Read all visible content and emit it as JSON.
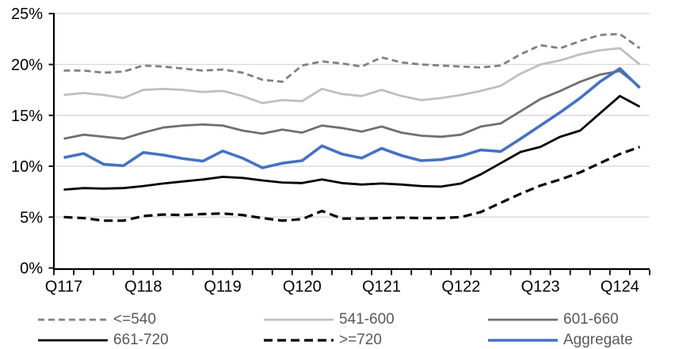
{
  "page": {
    "background": "#FFFFFF"
  },
  "chart_data": {
    "type": "line",
    "title": "",
    "xlabel": "",
    "ylabel": "",
    "x_tick_labels": [
      "Q117",
      "Q118",
      "Q119",
      "Q120",
      "Q121",
      "Q122",
      "Q123",
      "Q124"
    ],
    "x_label_point_interval": 4,
    "points_per_series": 30,
    "ylim": [
      0,
      25
    ],
    "y_tick_step": 5,
    "y_tick_labels": [
      "0%",
      "5%",
      "10%",
      "15%",
      "20%",
      "25%"
    ],
    "grid": "horizontal",
    "legend_position": "bottom",
    "colors": {
      "axis": "#000000",
      "gridline": "#D9D9D9",
      "axis_label_text": "#000000",
      "legend_text": "#595959",
      "accent_blue": "#4472C4"
    },
    "series": [
      {
        "name": "<=540",
        "color": "#808080",
        "dash": "8 5",
        "width": 2.8,
        "values": [
          19.4,
          19.4,
          19.2,
          19.3,
          19.9,
          19.8,
          19.6,
          19.4,
          19.5,
          19.2,
          18.5,
          18.3,
          19.9,
          20.3,
          20.1,
          19.8,
          20.7,
          20.2,
          20.0,
          19.9,
          19.8,
          19.7,
          19.9,
          21.0,
          21.9,
          21.6,
          22.3,
          22.9,
          23.0,
          21.6
        ]
      },
      {
        "name": "541-600",
        "color": "#BFBFBF",
        "dash": null,
        "width": 2.8,
        "values": [
          17.0,
          17.2,
          17.0,
          16.7,
          17.5,
          17.6,
          17.5,
          17.3,
          17.4,
          16.9,
          16.2,
          16.5,
          16.4,
          17.6,
          17.1,
          16.9,
          17.5,
          16.9,
          16.5,
          16.7,
          17.0,
          17.4,
          17.9,
          19.1,
          20.0,
          20.4,
          21.0,
          21.4,
          21.6,
          20.0
        ]
      },
      {
        "name": "601-660",
        "color": "#6F6F6F",
        "dash": null,
        "width": 2.8,
        "values": [
          12.7,
          13.1,
          12.9,
          12.7,
          13.3,
          13.8,
          14.0,
          14.1,
          14.0,
          13.5,
          13.2,
          13.6,
          13.3,
          14.0,
          13.75,
          13.4,
          13.9,
          13.3,
          13.0,
          12.9,
          13.1,
          13.9,
          14.2,
          15.4,
          16.6,
          17.4,
          18.3,
          19.0,
          19.35,
          17.8
        ]
      },
      {
        "name": "661-720",
        "color": "#000000",
        "dash": null,
        "width": 2.8,
        "values": [
          7.7,
          7.85,
          7.8,
          7.85,
          8.05,
          8.3,
          8.5,
          8.7,
          8.95,
          8.85,
          8.6,
          8.4,
          8.35,
          8.7,
          8.35,
          8.2,
          8.3,
          8.2,
          8.05,
          8.0,
          8.3,
          9.2,
          10.3,
          11.4,
          11.9,
          12.9,
          13.5,
          15.2,
          16.9,
          15.85
        ]
      },
      {
        "name": ">=720",
        "color": "#000000",
        "dash": "11 6",
        "width": 3.2,
        "values": [
          5.0,
          4.9,
          4.65,
          4.65,
          5.1,
          5.25,
          5.2,
          5.3,
          5.35,
          5.2,
          4.9,
          4.65,
          4.8,
          5.6,
          4.85,
          4.85,
          4.9,
          4.95,
          4.9,
          4.9,
          5.0,
          5.5,
          6.4,
          7.3,
          8.1,
          8.7,
          9.4,
          10.3,
          11.2,
          11.9
        ]
      },
      {
        "name": "Aggregate",
        "color": "#4472C4",
        "dash": null,
        "width": 3.6,
        "values": [
          10.85,
          11.25,
          10.2,
          10.05,
          11.35,
          11.1,
          10.75,
          10.5,
          11.5,
          10.8,
          9.85,
          10.3,
          10.55,
          12.0,
          11.2,
          10.8,
          11.75,
          11.05,
          10.55,
          10.65,
          11.0,
          11.6,
          11.45,
          12.7,
          14.0,
          15.3,
          16.7,
          18.3,
          19.6,
          17.7
        ]
      }
    ],
    "legend_rows": [
      [
        0,
        1,
        2
      ],
      [
        3,
        4,
        5
      ]
    ]
  }
}
